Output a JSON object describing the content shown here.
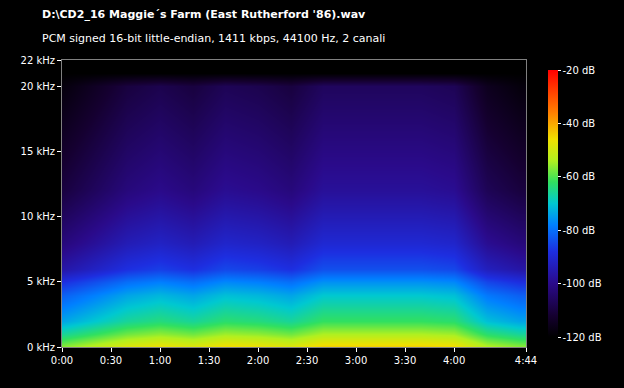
{
  "chart_data": {
    "type": "heatmap",
    "title": "D:\\CD2_16 Maggie´s Farm (East Rutherford '86).wav",
    "subtitle": "PCM signed 16-bit little-endian, 1411 kbps, 44100 Hz, 2 canali",
    "x": [
      0,
      20,
      40,
      60,
      80,
      100,
      120,
      140,
      160,
      180,
      200,
      220,
      240,
      260,
      280
    ],
    "y": [
      0,
      1,
      2,
      3,
      4,
      5,
      6,
      7,
      8,
      9,
      10,
      11,
      12,
      13,
      14,
      15,
      16,
      17,
      18,
      19,
      20,
      21,
      22
    ],
    "z": [
      [
        -56,
        -52,
        -48,
        -46,
        -48,
        -45,
        -46,
        -48,
        -44,
        -44,
        -44,
        -44,
        -45,
        -53,
        -56
      ],
      [
        -66,
        -62,
        -58,
        -56,
        -58,
        -55,
        -56,
        -58,
        -54,
        -54,
        -54,
        -54,
        -55,
        -63,
        -66
      ],
      [
        -74,
        -70,
        -66,
        -64,
        -66,
        -63,
        -64,
        -66,
        -62,
        -62,
        -62,
        -62,
        -63,
        -71,
        -74
      ],
      [
        -78,
        -74,
        -70,
        -68,
        -70,
        -67,
        -68,
        -70,
        -66,
        -66,
        -66,
        -66,
        -67,
        -75,
        -78
      ],
      [
        -82,
        -78,
        -74,
        -72,
        -74,
        -71,
        -72,
        -74,
        -70,
        -70,
        -70,
        -70,
        -71,
        -79,
        -82
      ],
      [
        -88,
        -84,
        -80,
        -78,
        -80,
        -77,
        -78,
        -80,
        -76,
        -76,
        -76,
        -76,
        -77,
        -85,
        -88
      ],
      [
        -96,
        -92,
        -88,
        -86,
        -88,
        -85,
        -86,
        -88,
        -84,
        -84,
        -84,
        -84,
        -85,
        -93,
        -96
      ],
      [
        -99,
        -95,
        -91,
        -89,
        -91,
        -88,
        -89,
        -91,
        -87,
        -87,
        -87,
        -87,
        -88,
        -96,
        -99
      ],
      [
        -102,
        -98,
        -94,
        -92,
        -94,
        -91,
        -92,
        -94,
        -90,
        -90,
        -90,
        -90,
        -91,
        -99,
        -102
      ],
      [
        -104,
        -100,
        -96,
        -94,
        -96,
        -93,
        -94,
        -96,
        -92,
        -92,
        -92,
        -92,
        -93,
        -101,
        -104
      ],
      [
        -106,
        -102,
        -98,
        -96,
        -98,
        -95,
        -96,
        -98,
        -94,
        -94,
        -94,
        -94,
        -95,
        -103,
        -106
      ],
      [
        -108,
        -104,
        -100,
        -98,
        -100,
        -97,
        -98,
        -100,
        -96,
        -96,
        -96,
        -96,
        -97,
        -105,
        -108
      ],
      [
        -110,
        -106,
        -102,
        -100,
        -102,
        -99,
        -100,
        -102,
        -98,
        -98,
        -98,
        -98,
        -99,
        -107,
        -110
      ],
      [
        -111,
        -107,
        -103,
        -101,
        -103,
        -100,
        -101,
        -103,
        -99,
        -99,
        -99,
        -99,
        -100,
        -108,
        -111
      ],
      [
        -112,
        -108,
        -104,
        -102,
        -104,
        -101,
        -102,
        -104,
        -100,
        -100,
        -100,
        -100,
        -101,
        -109,
        -112
      ],
      [
        -113,
        -109,
        -105,
        -103,
        -105,
        -102,
        -103,
        -105,
        -101,
        -101,
        -101,
        -101,
        -102,
        -110,
        -113
      ],
      [
        -114,
        -110,
        -106,
        -104,
        -106,
        -103,
        -104,
        -106,
        -102,
        -102,
        -102,
        -102,
        -103,
        -111,
        -114
      ],
      [
        -115,
        -111,
        -107,
        -105,
        -107,
        -104,
        -105,
        -107,
        -103,
        -103,
        -103,
        -103,
        -104,
        -112,
        -115
      ],
      [
        -116,
        -112,
        -108,
        -106,
        -108,
        -105,
        -106,
        -108,
        -104,
        -104,
        -104,
        -104,
        -105,
        -113,
        -116
      ],
      [
        -117,
        -113,
        -109,
        -107,
        -109,
        -106,
        -107,
        -109,
        -105,
        -105,
        -105,
        -105,
        -106,
        -114,
        -117
      ],
      [
        -118,
        -114,
        -110,
        -108,
        -110,
        -107,
        -108,
        -110,
        -106,
        -106,
        -106,
        -106,
        -107,
        -115,
        -118
      ],
      [
        -120,
        -120,
        -120,
        -120,
        -120,
        -120,
        -120,
        -120,
        -120,
        -120,
        -120,
        -120,
        -120,
        -120,
        -120
      ],
      [
        -120,
        -120,
        -120,
        -120,
        -120,
        -120,
        -120,
        -120,
        -120,
        -120,
        -120,
        -120,
        -120,
        -120,
        -120
      ]
    ],
    "xlim": [
      0,
      284
    ],
    "xticks": [
      {
        "value": 0,
        "label": "0:00"
      },
      {
        "value": 30,
        "label": "0:30"
      },
      {
        "value": 60,
        "label": "1:00"
      },
      {
        "value": 90,
        "label": "1:30"
      },
      {
        "value": 120,
        "label": "2:00"
      },
      {
        "value": 150,
        "label": "2:30"
      },
      {
        "value": 180,
        "label": "3:00"
      },
      {
        "value": 210,
        "label": "3:30"
      },
      {
        "value": 240,
        "label": "4:00"
      },
      {
        "value": 284,
        "label": "4:44"
      }
    ],
    "ylim": [
      0,
      22
    ],
    "yticks": [
      {
        "value": 0,
        "label": "0 kHz"
      },
      {
        "value": 5,
        "label": "5 kHz"
      },
      {
        "value": 10,
        "label": "10 kHz"
      },
      {
        "value": 15,
        "label": "15 kHz"
      },
      {
        "value": 20,
        "label": "20 kHz"
      },
      {
        "value": 22,
        "label": "22 kHz"
      }
    ],
    "zlim": [
      -120,
      -20
    ],
    "zticks": [
      {
        "value": -20,
        "label": "-20 dB"
      },
      {
        "value": -40,
        "label": "-40 dB"
      },
      {
        "value": -60,
        "label": "-60 dB"
      },
      {
        "value": -80,
        "label": "-80 dB"
      },
      {
        "value": -100,
        "label": "-100 dB"
      },
      {
        "value": -120,
        "label": "-120 dB"
      }
    ]
  }
}
